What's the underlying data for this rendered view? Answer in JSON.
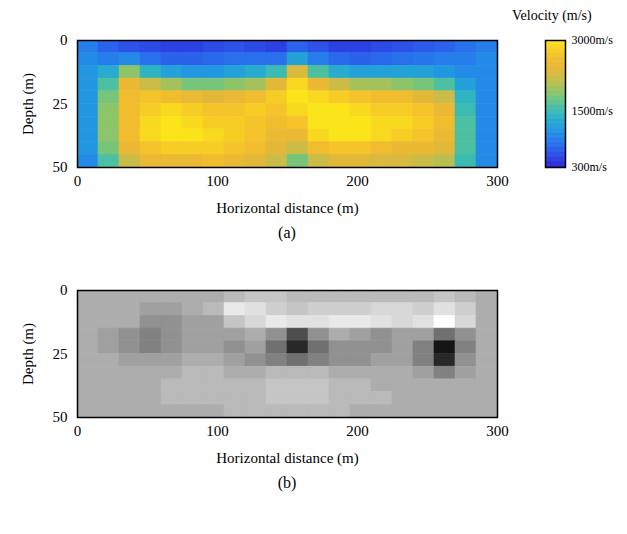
{
  "chart_data": [
    {
      "type": "heatmap",
      "caption": "(a)",
      "xlabel": "Horizontal distance (m)",
      "ylabel": "Depth (m)",
      "xlim": [
        0,
        300
      ],
      "ylim": [
        50,
        0
      ],
      "xticks": [
        0,
        100,
        200,
        300
      ],
      "yticks": [
        0,
        25,
        50
      ],
      "x": [
        7.5,
        22.5,
        37.5,
        52.5,
        67.5,
        82.5,
        97.5,
        112.5,
        127.5,
        142.5,
        157.5,
        172.5,
        187.5,
        202.5,
        217.5,
        232.5,
        247.5,
        262.5,
        277.5,
        292.5
      ],
      "y": [
        2.5,
        7.5,
        12.5,
        17.5,
        22.5,
        27.5,
        32.5,
        37.5,
        42.5,
        47.5
      ],
      "values": [
        [
          900,
          700,
          600,
          550,
          500,
          500,
          550,
          600,
          550,
          500,
          700,
          600,
          500,
          500,
          550,
          600,
          650,
          700,
          800,
          900
        ],
        [
          1000,
          900,
          1000,
          800,
          700,
          700,
          750,
          800,
          800,
          800,
          1200,
          900,
          750,
          700,
          750,
          800,
          850,
          900,
          900,
          1000
        ],
        [
          1100,
          1300,
          1900,
          1400,
          1200,
          1100,
          1100,
          1200,
          1300,
          1500,
          2300,
          1600,
          1300,
          1200,
          1200,
          1200,
          1200,
          1100,
          1000,
          1000
        ],
        [
          1100,
          1600,
          2500,
          2200,
          2000,
          1800,
          1800,
          1900,
          2000,
          2400,
          2900,
          2500,
          2200,
          2000,
          2000,
          1900,
          1800,
          1600,
          1200,
          1000
        ],
        [
          1100,
          1800,
          2600,
          2700,
          2600,
          2500,
          2400,
          2500,
          2600,
          2800,
          3000,
          2900,
          2800,
          2700,
          2600,
          2600,
          2400,
          2200,
          1400,
          1000
        ],
        [
          1100,
          1900,
          2600,
          2800,
          2900,
          2800,
          2700,
          2700,
          2800,
          2700,
          2900,
          3000,
          3000,
          2900,
          2800,
          2800,
          2700,
          2500,
          1500,
          1000
        ],
        [
          1100,
          1900,
          2600,
          2900,
          3000,
          2900,
          2800,
          2800,
          2700,
          2600,
          2700,
          3000,
          3000,
          3000,
          2900,
          2900,
          2800,
          2600,
          1600,
          1000
        ],
        [
          1100,
          1900,
          2600,
          2900,
          3000,
          3000,
          2900,
          2800,
          2700,
          2500,
          2500,
          2900,
          3000,
          3000,
          2900,
          2800,
          2700,
          2500,
          1600,
          1000
        ],
        [
          1100,
          1800,
          2500,
          2700,
          2800,
          2800,
          2800,
          2700,
          2600,
          2400,
          2200,
          2600,
          2700,
          2700,
          2600,
          2500,
          2500,
          2400,
          1600,
          1000
        ],
        [
          1000,
          1600,
          2200,
          2500,
          2500,
          2500,
          2600,
          2500,
          2400,
          2200,
          1800,
          2200,
          2400,
          2400,
          2300,
          2300,
          2200,
          2100,
          1500,
          1000
        ]
      ],
      "colorbar": {
        "title": "Velocity (m/s)",
        "range": [
          300,
          3000
        ],
        "ticks": [
          {
            "value": 3000,
            "label": "3000m/s"
          },
          {
            "value": 1500,
            "label": "1500m/s"
          },
          {
            "value": 300,
            "label": "300m/s"
          }
        ]
      }
    },
    {
      "type": "heatmap",
      "caption": "(b)",
      "xlabel": "Horizontal distance (m)",
      "ylabel": "Depth (m)",
      "xlim": [
        0,
        300
      ],
      "ylim": [
        50,
        0
      ],
      "xticks": [
        0,
        100,
        200,
        300
      ],
      "yticks": [
        0,
        25,
        50
      ],
      "x": [
        7.5,
        22.5,
        37.5,
        52.5,
        67.5,
        82.5,
        97.5,
        112.5,
        127.5,
        142.5,
        157.5,
        172.5,
        187.5,
        202.5,
        217.5,
        232.5,
        247.5,
        262.5,
        277.5,
        292.5
      ],
      "y": [
        2.5,
        7.5,
        12.5,
        17.5,
        22.5,
        27.5,
        32.5,
        37.5,
        42.5,
        47.5
      ],
      "values": [
        [
          0,
          0,
          0,
          0,
          0,
          0,
          0,
          0.1,
          0.2,
          0.2,
          0.1,
          0.1,
          0.1,
          0.1,
          0.1,
          0.1,
          0.1,
          0.2,
          0.1,
          0
        ],
        [
          0,
          0,
          0,
          -0.1,
          -0.1,
          0,
          0.1,
          0.6,
          0.5,
          0.3,
          0.2,
          0.3,
          0.3,
          0.3,
          0.4,
          0.4,
          0.3,
          0.5,
          0.3,
          0
        ],
        [
          0,
          0,
          0,
          -0.2,
          -0.2,
          -0.1,
          -0.1,
          0.2,
          0.4,
          0.6,
          0.5,
          0.5,
          0.6,
          0.6,
          0.5,
          0.4,
          0.5,
          0.9,
          0.4,
          0
        ],
        [
          0,
          -0.1,
          -0.2,
          -0.3,
          -0.2,
          -0.1,
          -0.1,
          -0.1,
          0,
          -0.2,
          -0.6,
          -0.2,
          0,
          -0.1,
          -0.2,
          -0.1,
          -0.1,
          -0.4,
          -0.2,
          0
        ],
        [
          0,
          -0.1,
          -0.2,
          -0.3,
          -0.2,
          -0.1,
          -0.1,
          -0.2,
          -0.1,
          -0.4,
          -0.8,
          -0.4,
          -0.2,
          -0.2,
          -0.2,
          -0.1,
          -0.3,
          -0.9,
          -0.3,
          0
        ],
        [
          0,
          0,
          -0.1,
          -0.1,
          -0.1,
          0,
          0,
          -0.1,
          -0.2,
          -0.3,
          -0.4,
          -0.3,
          -0.2,
          -0.2,
          -0.1,
          -0.1,
          -0.3,
          -0.8,
          -0.2,
          0
        ],
        [
          0,
          0,
          0,
          0,
          0,
          0.1,
          0.1,
          0,
          0,
          0.1,
          0.1,
          0.1,
          0,
          0,
          0,
          0,
          -0.1,
          -0.3,
          -0.1,
          0
        ],
        [
          0,
          0,
          0,
          0,
          0.1,
          0.1,
          0.1,
          0.1,
          0.1,
          0.2,
          0.2,
          0.2,
          0.1,
          0.1,
          0,
          0,
          0,
          0,
          0,
          0
        ],
        [
          0,
          0,
          0,
          0,
          0.1,
          0.1,
          0.1,
          0.1,
          0.1,
          0.2,
          0.2,
          0.2,
          0.1,
          0.1,
          0.1,
          0,
          0,
          0,
          0,
          0
        ],
        [
          0,
          0,
          0,
          0,
          0,
          0,
          0,
          0.1,
          0.1,
          0.1,
          0.1,
          0.1,
          0.1,
          0,
          0,
          0,
          0,
          0,
          0,
          0
        ]
      ]
    }
  ]
}
